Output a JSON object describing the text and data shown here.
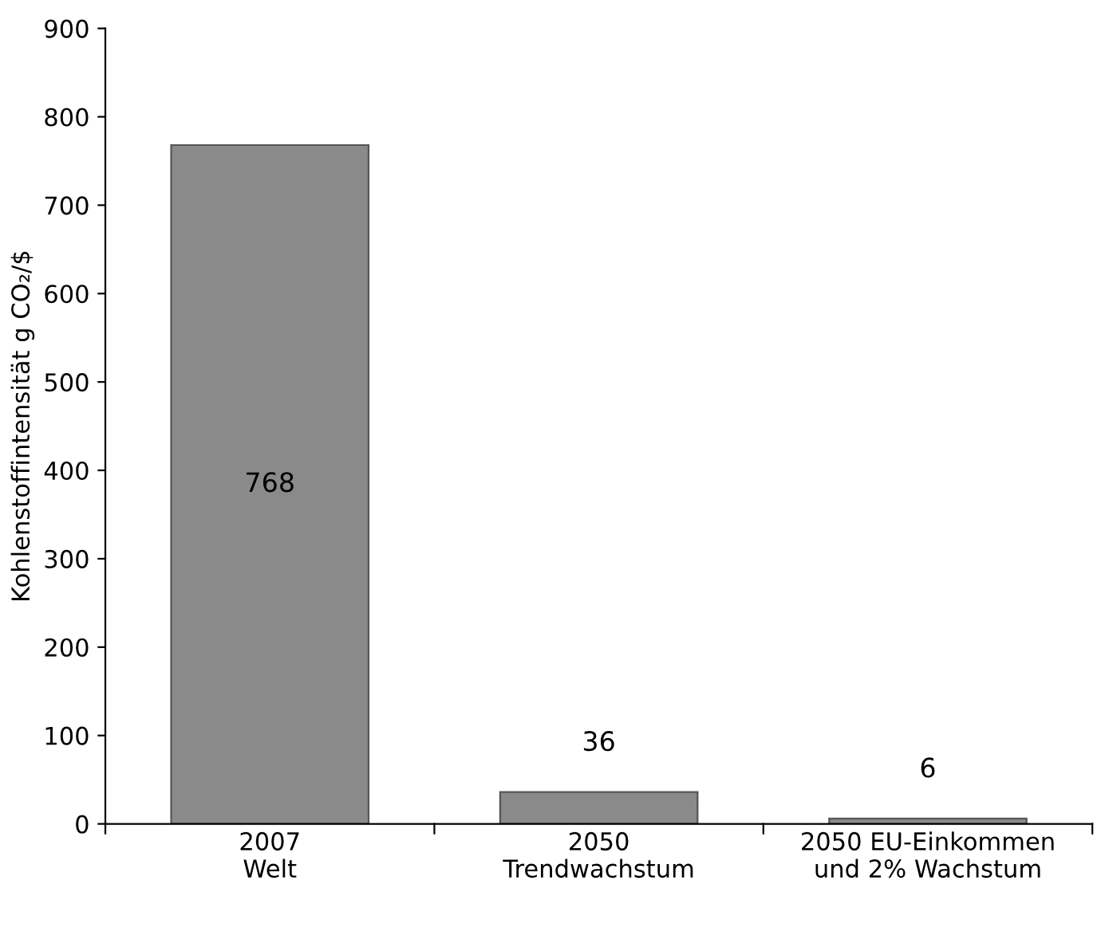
{
  "chart_data": {
    "type": "bar",
    "ylabel": "Kohlenstoffintensität g CO₂/$",
    "categories": [
      "2007\nWelt",
      "2050\nTrendwachstum",
      "2050 EU-Einkommen\nund 2% Wachstum"
    ],
    "values": [
      768,
      36,
      6
    ],
    "color": "#8a8a8a",
    "ylim": [
      0,
      900
    ],
    "yticks": [
      0,
      100,
      200,
      300,
      400,
      500,
      600,
      700,
      800,
      900
    ],
    "grid": false,
    "data_labels": true,
    "legend": false
  }
}
